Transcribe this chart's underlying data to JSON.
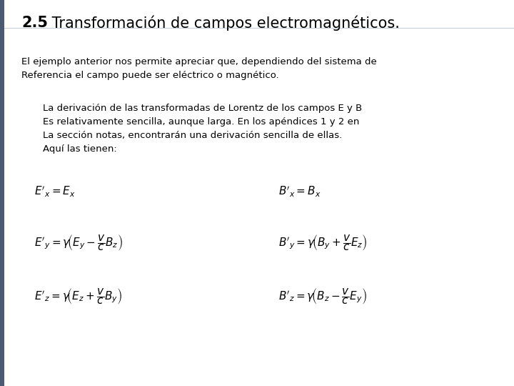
{
  "title_bold": "2.5",
  "title_rest": " Transformación de campos electromagnéticos.",
  "paragraph1": "El ejemplo anterior nos permite apreciar que, dependiendo del sistema de\nReferencia el campo puede ser eléctrico o magnético.",
  "paragraph2": "La derivación de las transformadas de Lorentz de los campos E y B\nEs relativamente sencilla, aunque larga. En los apéndices 1 y 2 en\nLa sección notas, encontrarán una derivación sencilla de ellas.\nAquí las tienen:",
  "eq_left": [
    "E'_x = E_x",
    "E'_y = \\gamma\\!\\left(E_y - \\dfrac{v}{c}B_z\\right)",
    "E'_z = \\gamma\\!\\left(E_z + \\dfrac{v}{c}B_y\\right)"
  ],
  "eq_right": [
    "B'_x = B_x",
    "B'_y = \\gamma\\!\\left(B_y + \\dfrac{v}{c}E_z\\right)",
    "B'_z = \\gamma\\!\\left(B_z - \\dfrac{v}{c}E_y\\right)"
  ],
  "bg_color": "#ffffff",
  "text_color": "#000000",
  "title_line_color": "#c5cdd8",
  "left_bar_color": "#4a5a70",
  "font_size_title": 15,
  "font_size_body": 9.5,
  "font_size_body2": 9.5,
  "font_size_eq": 11
}
